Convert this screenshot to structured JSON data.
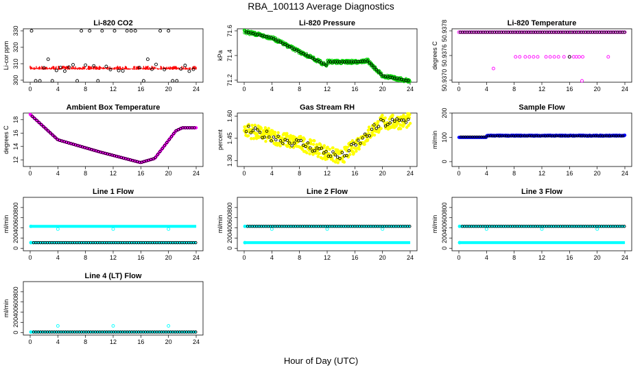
{
  "page": {
    "title": "RBA_100113  Average Diagnostics",
    "xlabel": "Hour of Day (UTC)"
  },
  "chart_data": [
    {
      "type": "scatter",
      "title": "Li-820 CO2",
      "ylabel": "Li-cor ppm",
      "xlim": [
        0,
        24
      ],
      "ylim": [
        300,
        320
      ],
      "yticks": [
        "300",
        "310",
        "320",
        "330"
      ],
      "xticks": [
        "0",
        "4",
        "8",
        "12",
        "16",
        "20",
        "24"
      ],
      "style": "co2"
    },
    {
      "type": "scatter",
      "title": "Li-820 Pressure",
      "ylabel": "kPa",
      "xlim": [
        0,
        24
      ],
      "yticks": [
        "71.2",
        "71.4",
        "71.6"
      ],
      "xticks": [
        "0",
        "4",
        "8",
        "12",
        "16",
        "20",
        "24"
      ],
      "style": "pressure"
    },
    {
      "type": "scatter",
      "title": "Li-820 Temperature",
      "ylabel": "degrees C",
      "xlim": [
        0,
        24
      ],
      "yticks": [
        "50.9370",
        "50.9376",
        "50.9378"
      ],
      "xticks": [
        "0",
        "4",
        "8",
        "12",
        "16",
        "20",
        "24"
      ],
      "style": "temp"
    },
    {
      "type": "scatter",
      "title": "Ambient Box Temperature",
      "ylabel": "degrees C",
      "xlim": [
        0,
        24
      ],
      "ylim": [
        11,
        19
      ],
      "yticks": [
        "12",
        "14",
        "16",
        "18"
      ],
      "xticks": [
        "0",
        "4",
        "8",
        "12",
        "16",
        "20",
        "24"
      ],
      "style": "ambient"
    },
    {
      "type": "scatter",
      "title": "Gas Stream RH",
      "ylabel": "percent",
      "xlim": [
        0,
        24
      ],
      "ylim": [
        1.26,
        1.62
      ],
      "yticks": [
        "1.30",
        "1.45",
        "1.60"
      ],
      "xticks": [
        "0",
        "4",
        "8",
        "12",
        "16",
        "20",
        "24"
      ],
      "style": "rh"
    },
    {
      "type": "scatter",
      "title": "Sample Flow",
      "ylabel": "ml/min",
      "xlim": [
        0,
        24
      ],
      "ylim": [
        -20,
        200
      ],
      "yticks": [
        "0",
        "100",
        "200"
      ],
      "xticks": [
        "0",
        "4",
        "8",
        "12",
        "16",
        "20",
        "24"
      ],
      "style": "sample",
      "series": [
        {
          "name": "",
          "values": [
            100,
            110
          ],
          "color": "#0000ff"
        }
      ]
    },
    {
      "type": "scatter",
      "title": "Line 1 Flow",
      "ylabel": "ml/min",
      "xlim": [
        0,
        24
      ],
      "ylim": [
        -50,
        1000
      ],
      "yticks": [
        "0",
        "200",
        "400",
        "600",
        "800"
      ],
      "xticks": [
        "0",
        "4",
        "8",
        "12",
        "16",
        "20",
        "24"
      ],
      "style": "flow",
      "levels": {
        "cyan_high": 430,
        "cyan_low": 110,
        "black": 110
      }
    },
    {
      "type": "scatter",
      "title": "Line 2 Flow",
      "ylabel": "ml/min",
      "xlim": [
        0,
        24
      ],
      "ylim": [
        -50,
        1000
      ],
      "yticks": [
        "0",
        "200",
        "400",
        "600",
        "800"
      ],
      "xticks": [
        "0",
        "4",
        "8",
        "12",
        "16",
        "20",
        "24"
      ],
      "style": "flow",
      "levels": {
        "cyan_high": 430,
        "cyan_low": 110,
        "black": 430
      }
    },
    {
      "type": "scatter",
      "title": "Line 3 Flow",
      "ylabel": "ml/min",
      "xlim": [
        0,
        24
      ],
      "ylim": [
        -50,
        1000
      ],
      "yticks": [
        "0",
        "200",
        "400",
        "600",
        "800"
      ],
      "xticks": [
        "0",
        "4",
        "8",
        "12",
        "16",
        "20",
        "24"
      ],
      "style": "flow",
      "levels": {
        "cyan_high": 430,
        "cyan_low": 110,
        "black": 430
      }
    },
    {
      "type": "scatter",
      "title": "Line 4 (LT) Flow",
      "ylabel": "ml/min",
      "xlim": [
        0,
        24
      ],
      "ylim": [
        -50,
        1000
      ],
      "yticks": [
        "0",
        "200",
        "400",
        "600",
        "800"
      ],
      "xticks": [
        "0",
        "4",
        "8",
        "12",
        "16",
        "20",
        "24"
      ],
      "style": "flow4",
      "levels": {
        "cyan_low": 10,
        "black": 10,
        "spike": 130
      }
    }
  ],
  "colors": {
    "co2": "#ff0000",
    "pressure": "#00cc00",
    "temp": "#ff00ff",
    "ambient": "#ff00ff",
    "rh": "#ffff00",
    "sample": "#0000ff",
    "flow": "#00ffff",
    "avg": "#000000"
  }
}
